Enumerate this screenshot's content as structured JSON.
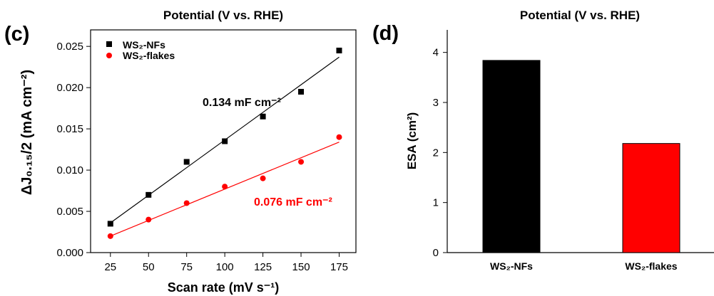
{
  "chart_data": [
    {
      "panel_label": "(c)",
      "type": "scatter",
      "top_title": "Potential (V vs. RHE)",
      "xlabel": "Scan rate (mV s⁻¹)",
      "ylabel": "ΔJ₀.₁₅/2 (mA cm⁻²)",
      "xlim": [
        12,
        186
      ],
      "ylim": [
        0,
        0.027
      ],
      "xticks": [
        25,
        50,
        75,
        100,
        125,
        150,
        175
      ],
      "yticks": [
        0.0,
        0.005,
        0.01,
        0.015,
        0.02,
        0.025
      ],
      "ytick_labels": [
        "0.000",
        "0.005",
        "0.010",
        "0.015",
        "0.020",
        "0.025"
      ],
      "legend_position": "top-left",
      "series": [
        {
          "name": "WS₂-NFs",
          "color": "#000000",
          "marker": "square",
          "x": [
            25,
            50,
            75,
            100,
            125,
            150,
            175
          ],
          "y": [
            0.0035,
            0.007,
            0.011,
            0.0135,
            0.0165,
            0.0195,
            0.0245
          ],
          "fit": [
            [
              25,
              0.0036
            ],
            [
              175,
              0.0237
            ]
          ],
          "annotation": "0.134 mF cm⁻²"
        },
        {
          "name": "WS₂-flakes",
          "color": "#ff0000",
          "marker": "circle",
          "x": [
            25,
            50,
            75,
            100,
            125,
            150,
            175
          ],
          "y": [
            0.002,
            0.004,
            0.006,
            0.008,
            0.009,
            0.011,
            0.014
          ],
          "fit": [
            [
              25,
              0.002
            ],
            [
              175,
              0.0134
            ]
          ],
          "annotation": "0.076 mF cm⁻²"
        }
      ]
    },
    {
      "panel_label": "(d)",
      "type": "bar",
      "top_title": "Potential (V vs. RHE)",
      "ylabel": "ESA (cm²)",
      "ylim": [
        0,
        4.45
      ],
      "yticks": [
        0,
        1,
        2,
        3,
        4
      ],
      "categories": [
        "WS₂-NFs",
        "WS₂-flakes"
      ],
      "values": [
        3.84,
        2.18
      ],
      "colors": [
        "#000000",
        "#ff0000"
      ]
    }
  ]
}
